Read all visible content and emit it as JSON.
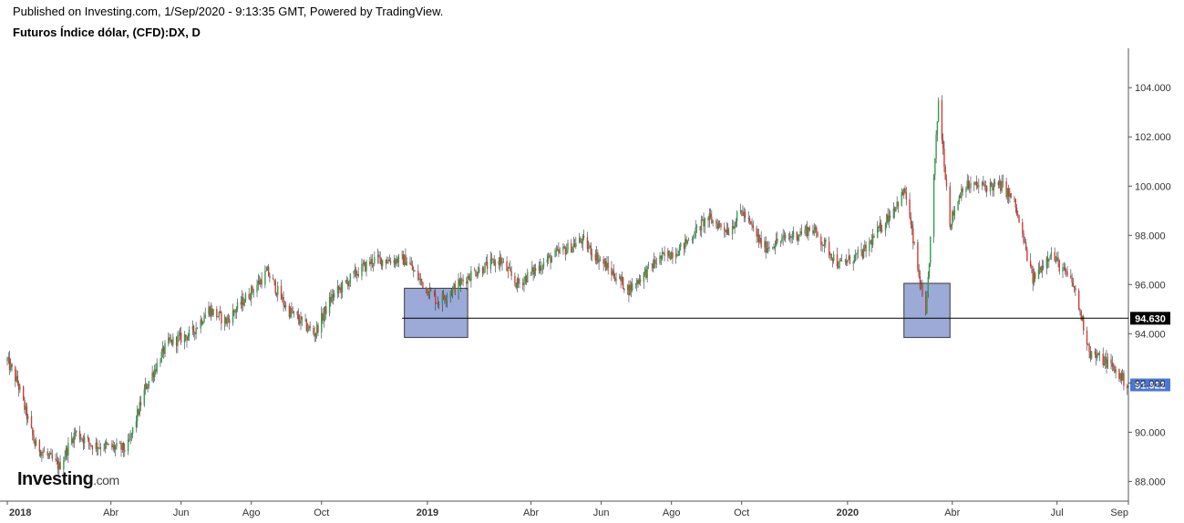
{
  "header": {
    "published": "Published on Investing.com, 1/Sep/2020 - 9:13:35 GMT, Powered by TradingView.",
    "symbol": "Futuros Índice dólar, (CFD):DX, D"
  },
  "logo": {
    "brand": "Investing",
    "suffix": ".com"
  },
  "colors": {
    "up": "#2ba14b",
    "down": "#d43a2f",
    "wick": "#333333",
    "box": "#8a9bd0",
    "lastPrice": "#4a77d6",
    "levelBadge": "#000000"
  },
  "chart_data": {
    "type": "candlestick",
    "title": "Futuros Índice dólar, (CFD):DX, D",
    "x_axis": {
      "start": "2018-01-01",
      "end": "2020-09-01",
      "tick_labels": [
        {
          "label": "2018",
          "date": "2018-01-01",
          "bold": true
        },
        {
          "label": "Abr",
          "date": "2018-04-01",
          "bold": false
        },
        {
          "label": "Jun",
          "date": "2018-06-01",
          "bold": false
        },
        {
          "label": "Ago",
          "date": "2018-08-01",
          "bold": false
        },
        {
          "label": "Oct",
          "date": "2018-10-01",
          "bold": false
        },
        {
          "label": "2019",
          "date": "2019-01-01",
          "bold": true
        },
        {
          "label": "Abr",
          "date": "2019-04-01",
          "bold": false
        },
        {
          "label": "Jun",
          "date": "2019-06-01",
          "bold": false
        },
        {
          "label": "Ago",
          "date": "2019-08-01",
          "bold": false
        },
        {
          "label": "Oct",
          "date": "2019-10-01",
          "bold": false
        },
        {
          "label": "2020",
          "date": "2020-01-01",
          "bold": true
        },
        {
          "label": "Abr",
          "date": "2020-04-01",
          "bold": false
        },
        {
          "label": "Jul",
          "date": "2020-07-01",
          "bold": false
        },
        {
          "label": "Sep",
          "date": "2020-09-01",
          "bold": false
        }
      ]
    },
    "y_axis": {
      "range": [
        87.2,
        105.6
      ],
      "ticks": [
        88,
        90,
        92,
        94,
        96,
        98,
        100,
        102,
        104
      ],
      "tick_labels": [
        "88.000",
        "90.000",
        "92.000",
        "94.000",
        "96.000",
        "98.000",
        "100.000",
        "102.000",
        "104.000"
      ]
    },
    "price_path": [
      [
        "2018-01-01",
        92.9
      ],
      [
        "2018-01-10",
        92.0
      ],
      [
        "2018-01-25",
        89.5
      ],
      [
        "2018-02-15",
        88.6
      ],
      [
        "2018-03-01",
        90.0
      ],
      [
        "2018-03-15",
        89.5
      ],
      [
        "2018-04-15",
        89.3
      ],
      [
        "2018-05-01",
        91.8
      ],
      [
        "2018-05-20",
        93.6
      ],
      [
        "2018-06-10",
        94.0
      ],
      [
        "2018-06-25",
        95.0
      ],
      [
        "2018-07-10",
        94.5
      ],
      [
        "2018-08-15",
        96.5
      ],
      [
        "2018-09-01",
        95.0
      ],
      [
        "2018-09-25",
        94.0
      ],
      [
        "2018-10-10",
        95.5
      ],
      [
        "2018-11-01",
        96.5
      ],
      [
        "2018-11-15",
        97.0
      ],
      [
        "2018-12-15",
        97.0
      ],
      [
        "2018-12-20",
        96.5
      ],
      [
        "2019-01-10",
        95.3
      ],
      [
        "2019-01-20",
        95.7
      ],
      [
        "2019-02-10",
        96.5
      ],
      [
        "2019-03-05",
        97.0
      ],
      [
        "2019-03-20",
        96.0
      ],
      [
        "2019-04-15",
        97.0
      ],
      [
        "2019-05-15",
        97.8
      ],
      [
        "2019-06-10",
        96.5
      ],
      [
        "2019-06-25",
        95.8
      ],
      [
        "2019-07-20",
        97.0
      ],
      [
        "2019-08-10",
        97.5
      ],
      [
        "2019-09-01",
        98.7
      ],
      [
        "2019-09-20",
        98.2
      ],
      [
        "2019-10-01",
        99.0
      ],
      [
        "2019-10-20",
        97.5
      ],
      [
        "2019-11-15",
        98.0
      ],
      [
        "2019-12-01",
        98.3
      ],
      [
        "2019-12-25",
        96.8
      ],
      [
        "2020-01-15",
        97.3
      ],
      [
        "2020-02-20",
        99.8
      ],
      [
        "2020-03-09",
        94.6
      ],
      [
        "2020-03-20",
        103.5
      ],
      [
        "2020-03-30",
        98.5
      ],
      [
        "2020-04-10",
        100.0
      ],
      [
        "2020-05-15",
        100.0
      ],
      [
        "2020-05-25",
        99.3
      ],
      [
        "2020-06-10",
        96.2
      ],
      [
        "2020-06-25",
        97.3
      ],
      [
        "2020-07-15",
        96.0
      ],
      [
        "2020-07-30",
        93.2
      ],
      [
        "2020-08-15",
        92.8
      ],
      [
        "2020-09-01",
        91.9
      ]
    ],
    "horizontal_line": {
      "value": 94.63,
      "label": "94.630",
      "start": "2018-12-10"
    },
    "last_price": {
      "value": 91.922,
      "label": "91.922"
    },
    "highlight_boxes": [
      {
        "x0": "2018-12-12",
        "x1": "2019-02-05",
        "y0": 93.85,
        "y1": 95.85
      },
      {
        "x0": "2020-02-19",
        "x1": "2020-03-30",
        "y0": 93.85,
        "y1": 96.05
      }
    ]
  }
}
